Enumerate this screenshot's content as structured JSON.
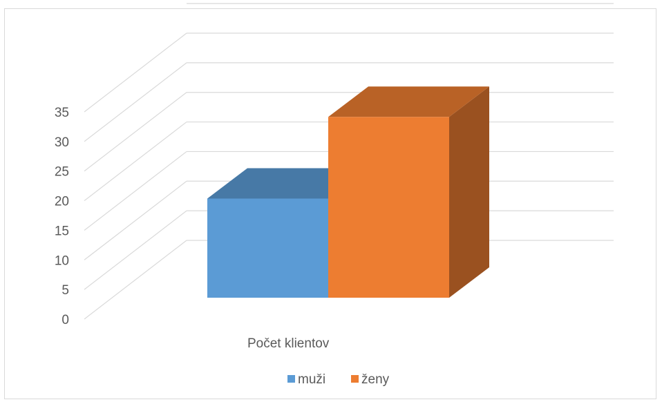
{
  "chart_data": {
    "type": "bar",
    "title": "",
    "xlabel": "",
    "ylabel": "",
    "categories": [
      "Počet klientov"
    ],
    "series": [
      {
        "name": "muži",
        "values": [
          17
        ],
        "color": "#5b9bd5"
      },
      {
        "name": "ženy",
        "values": [
          31
        ],
        "color": "#ed7d31"
      }
    ],
    "ylim": [
      0,
      35
    ],
    "yticks": [
      "0",
      "5",
      "10",
      "15",
      "20",
      "25",
      "30",
      "35"
    ],
    "grid": true,
    "legend_position": "bottom",
    "style": "3d-clustered-column"
  }
}
